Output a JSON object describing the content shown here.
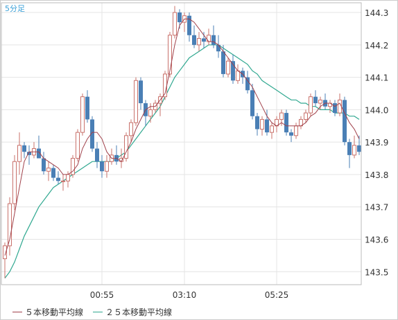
{
  "chart_data": {
    "type": "candlestick",
    "timeframe_label": "5分足",
    "x_tick_labels": [
      "00:55",
      "03:10",
      "05:25"
    ],
    "y_ticks": [
      143.5,
      143.6,
      143.7,
      143.8,
      143.9,
      144.0,
      144.1,
      144.2,
      144.3
    ],
    "y_tick_labels": [
      "143.5",
      "143.6",
      "143.7",
      "143.8",
      "143.9",
      "144.0",
      "144.1",
      "144.2",
      "144.3"
    ],
    "ylim": [
      143.46,
      144.33
    ],
    "grid": true,
    "legend_position": "bottom-left",
    "colors": {
      "up": "#c8706a",
      "down": "#4a7fb5",
      "ma5": "#a0404a",
      "ma25": "#30a890",
      "grid": "#e4e4e4",
      "axis": "#bbbbbb",
      "timeframe_label": "#3aa0d8"
    },
    "series": [
      {
        "name": "５本移動平均線",
        "color": "#a0404a"
      },
      {
        "name": "２５本移動平均線",
        "color": "#30a890"
      }
    ],
    "candles": [
      [
        143.54,
        143.59,
        143.48,
        143.58
      ],
      [
        143.58,
        143.73,
        143.55,
        143.71
      ],
      [
        143.71,
        143.86,
        143.69,
        143.84
      ],
      [
        143.84,
        143.93,
        143.8,
        143.89
      ],
      [
        143.89,
        143.9,
        143.85,
        143.87
      ],
      [
        143.87,
        143.89,
        143.83,
        143.86
      ],
      [
        143.86,
        143.9,
        143.85,
        143.88
      ],
      [
        143.88,
        143.92,
        143.85,
        143.85
      ],
      [
        143.85,
        143.87,
        143.8,
        143.81
      ],
      [
        143.81,
        143.84,
        143.78,
        143.82
      ],
      [
        143.82,
        143.83,
        143.78,
        143.79
      ],
      [
        143.79,
        143.81,
        143.77,
        143.78
      ],
      [
        143.78,
        143.8,
        143.75,
        143.78
      ],
      [
        143.78,
        143.81,
        143.76,
        143.8
      ],
      [
        143.8,
        143.86,
        143.79,
        143.85
      ],
      [
        143.85,
        143.94,
        143.84,
        143.93
      ],
      [
        143.93,
        144.05,
        143.92,
        144.04
      ],
      [
        144.04,
        144.06,
        143.96,
        143.97
      ],
      [
        143.97,
        143.98,
        143.87,
        143.88
      ],
      [
        143.88,
        143.9,
        143.82,
        143.84
      ],
      [
        143.84,
        143.86,
        143.79,
        143.81
      ],
      [
        143.81,
        143.86,
        143.79,
        143.84
      ],
      [
        143.84,
        143.88,
        143.83,
        143.86
      ],
      [
        143.86,
        143.89,
        143.83,
        143.84
      ],
      [
        143.84,
        143.88,
        143.82,
        143.85
      ],
      [
        143.85,
        143.93,
        143.84,
        143.92
      ],
      [
        143.92,
        143.97,
        143.9,
        143.96
      ],
      [
        143.96,
        144.1,
        143.95,
        144.09
      ],
      [
        144.09,
        144.1,
        144.0,
        144.02
      ],
      [
        144.02,
        144.03,
        143.95,
        143.98
      ],
      [
        143.98,
        144.02,
        143.96,
        144.0
      ],
      [
        144.0,
        144.03,
        143.99,
        144.02
      ],
      [
        144.02,
        144.05,
        143.98,
        144.04
      ],
      [
        144.04,
        144.12,
        144.03,
        144.11
      ],
      [
        144.11,
        144.24,
        144.1,
        144.23
      ],
      [
        144.23,
        144.32,
        144.22,
        144.3
      ],
      [
        144.3,
        144.31,
        144.25,
        144.27
      ],
      [
        144.27,
        144.3,
        144.24,
        144.29
      ],
      [
        144.29,
        144.3,
        144.21,
        144.23
      ],
      [
        144.23,
        144.26,
        144.19,
        144.2
      ],
      [
        144.2,
        144.24,
        144.18,
        144.22
      ],
      [
        144.22,
        144.24,
        144.19,
        144.21
      ],
      [
        144.21,
        144.25,
        144.2,
        144.23
      ],
      [
        144.23,
        144.26,
        144.19,
        144.2
      ],
      [
        144.2,
        144.23,
        144.16,
        144.18
      ],
      [
        144.18,
        144.2,
        144.1,
        144.11
      ],
      [
        144.11,
        144.16,
        144.1,
        144.15
      ],
      [
        144.15,
        144.17,
        144.08,
        144.09
      ],
      [
        144.09,
        144.14,
        144.08,
        144.12
      ],
      [
        144.12,
        144.13,
        144.08,
        144.1
      ],
      [
        144.1,
        144.12,
        144.05,
        144.06
      ],
      [
        144.06,
        144.08,
        143.97,
        143.98
      ],
      [
        143.98,
        143.99,
        143.92,
        143.94
      ],
      [
        143.94,
        143.98,
        143.92,
        143.97
      ],
      [
        143.97,
        144.0,
        143.92,
        143.93
      ],
      [
        143.93,
        143.96,
        143.91,
        143.95
      ],
      [
        143.95,
        143.98,
        143.93,
        143.97
      ],
      [
        143.97,
        144.0,
        143.95,
        143.99
      ],
      [
        143.99,
        144.0,
        143.92,
        143.93
      ],
      [
        143.93,
        143.94,
        143.9,
        143.92
      ],
      [
        143.92,
        143.96,
        143.91,
        143.95
      ],
      [
        143.95,
        143.98,
        143.94,
        143.97
      ],
      [
        143.97,
        144.0,
        143.96,
        143.99
      ],
      [
        143.99,
        144.05,
        143.98,
        144.04
      ],
      [
        144.04,
        144.06,
        144.01,
        144.02
      ],
      [
        144.02,
        144.04,
        144.0,
        144.03
      ],
      [
        144.03,
        144.05,
        144.0,
        144.01
      ],
      [
        144.01,
        144.03,
        143.99,
        144.02
      ],
      [
        144.02,
        144.03,
        143.98,
        143.99
      ],
      [
        143.99,
        144.05,
        143.98,
        144.03
      ],
      [
        144.03,
        144.04,
        143.89,
        143.9
      ],
      [
        143.9,
        143.91,
        143.82,
        143.86
      ],
      [
        143.86,
        143.92,
        143.85,
        143.89
      ],
      [
        143.89,
        143.92,
        143.86,
        143.87
      ]
    ],
    "ma5": [
      143.55,
      143.6,
      143.68,
      143.76,
      143.84,
      143.87,
      143.87,
      143.87,
      143.85,
      143.84,
      143.83,
      143.82,
      143.8,
      143.8,
      143.81,
      143.83,
      143.88,
      143.91,
      143.93,
      143.93,
      143.91,
      143.87,
      143.85,
      143.85,
      143.84,
      143.87,
      143.9,
      143.94,
      143.97,
      144.0,
      144.01,
      144.01,
      144.03,
      144.05,
      144.12,
      144.2,
      144.26,
      144.28,
      144.28,
      144.27,
      144.25,
      144.23,
      144.21,
      144.21,
      144.2,
      144.18,
      144.16,
      144.14,
      144.12,
      144.11,
      144.09,
      144.07,
      144.04,
      144.01,
      143.98,
      143.96,
      143.95,
      143.96,
      143.95,
      143.95,
      143.95,
      143.95,
      143.96,
      143.98,
      143.99,
      144.01,
      144.02,
      144.02,
      144.01,
      144.02,
      143.99,
      143.96,
      143.94,
      143.91
    ],
    "ma25": [
      143.48,
      143.5,
      143.53,
      143.57,
      143.61,
      143.64,
      143.67,
      143.7,
      143.72,
      143.74,
      143.76,
      143.77,
      143.78,
      143.79,
      143.8,
      143.81,
      143.82,
      143.83,
      143.84,
      143.84,
      143.84,
      143.84,
      143.84,
      143.85,
      143.86,
      143.87,
      143.89,
      143.91,
      143.93,
      143.95,
      143.97,
      143.99,
      144.01,
      144.04,
      144.07,
      144.1,
      144.12,
      144.14,
      144.16,
      144.17,
      144.18,
      144.19,
      144.2,
      144.2,
      144.2,
      144.19,
      144.18,
      144.17,
      144.16,
      144.15,
      144.14,
      144.12,
      144.11,
      144.09,
      144.08,
      144.07,
      144.06,
      144.05,
      144.04,
      144.03,
      144.03,
      144.02,
      144.02,
      144.01,
      144.01,
      144.0,
      144.0,
      144.0,
      143.99,
      143.99,
      143.99,
      143.98,
      143.98,
      143.97
    ]
  }
}
